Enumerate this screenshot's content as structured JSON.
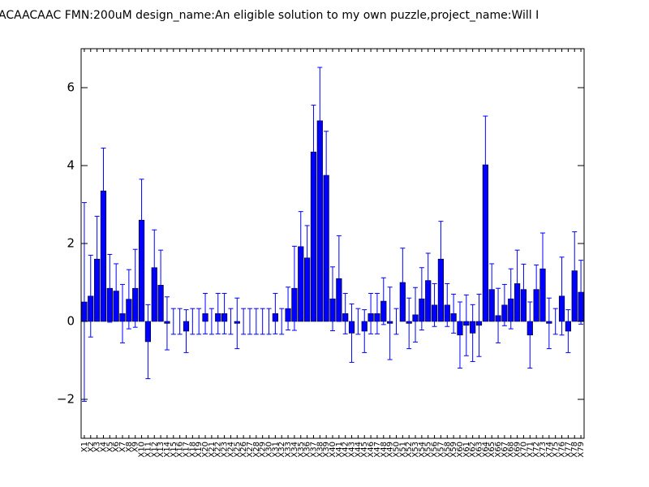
{
  "chart_data": {
    "type": "bar",
    "title": "ACAACAAC  FMN:200uM  design_name:An eligible solution to my own puzzle,project_name:Will I",
    "categories": [
      "X1",
      "X2",
      "X3",
      "X4",
      "X5",
      "X6",
      "X7",
      "X8",
      "X9",
      "X10",
      "X11",
      "X12",
      "X13",
      "X14",
      "X15",
      "X16",
      "X17",
      "X18",
      "X19",
      "X20",
      "X21",
      "X22",
      "X23",
      "X24",
      "X25",
      "X26",
      "X27",
      "X28",
      "X29",
      "X30",
      "X31",
      "X32",
      "X33",
      "X34",
      "X35",
      "X36",
      "X37",
      "X38",
      "X39",
      "X40",
      "X41",
      "X42",
      "X43",
      "X44",
      "X45",
      "X46",
      "X47",
      "X48",
      "X49",
      "X50",
      "X51",
      "X52",
      "X53",
      "X54",
      "X55",
      "X56",
      "X57",
      "X58",
      "X59",
      "X60",
      "X61",
      "X62",
      "X63",
      "X64",
      "X65",
      "X66",
      "X67",
      "X68",
      "X69",
      "X70",
      "X71",
      "X72",
      "X73",
      "X74",
      "X75",
      "X76",
      "X77",
      "X78",
      "X79"
    ],
    "values": [
      0.5,
      0.65,
      1.6,
      3.35,
      0.85,
      0.78,
      0.2,
      0.57,
      0.85,
      2.6,
      -0.52,
      1.38,
      0.93,
      -0.05,
      0,
      0,
      -0.25,
      0,
      0,
      0.2,
      0,
      0.2,
      0.2,
      0,
      -0.05,
      0,
      0,
      0,
      0,
      0,
      0.2,
      0,
      0.33,
      0.85,
      1.92,
      1.63,
      4.35,
      5.15,
      3.75,
      0.58,
      1.1,
      0.2,
      -0.3,
      0,
      -0.25,
      0.2,
      0.2,
      0.52,
      -0.05,
      0,
      1.0,
      -0.05,
      0.17,
      0.58,
      1.05,
      0.42,
      1.6,
      0.42,
      0.2,
      -0.35,
      -0.1,
      -0.3,
      -0.1,
      4.02,
      0.82,
      0.15,
      0.42,
      0.58,
      0.97,
      0.82,
      -0.35,
      0.82,
      1.35,
      -0.05,
      0,
      0.65,
      -0.25,
      1.3,
      0.75
    ],
    "errors": [
      2.55,
      1.05,
      1.1,
      1.1,
      0.87,
      0.7,
      0.75,
      0.76,
      1.0,
      1.05,
      0.95,
      0.97,
      0.9,
      0.68,
      0.33,
      0.33,
      0.55,
      0.33,
      0.33,
      0.52,
      0.33,
      0.52,
      0.52,
      0.33,
      0.65,
      0.33,
      0.33,
      0.33,
      0.33,
      0.33,
      0.52,
      0.33,
      0.55,
      1.08,
      0.9,
      0.83,
      1.2,
      1.37,
      1.13,
      0.82,
      1.1,
      0.52,
      0.75,
      0.33,
      0.55,
      0.52,
      0.52,
      0.6,
      0.93,
      0.33,
      0.88,
      0.65,
      0.7,
      0.8,
      0.7,
      0.55,
      0.97,
      0.55,
      0.5,
      0.85,
      0.78,
      0.73,
      0.8,
      1.25,
      0.66,
      0.7,
      0.53,
      0.77,
      0.86,
      0.65,
      0.85,
      0.63,
      0.92,
      0.65,
      0.33,
      1.0,
      0.55,
      1.0,
      0.82
    ],
    "color": "#0000ff",
    "error_color": "#0000ff",
    "ylim": [
      -3,
      7
    ],
    "yticks": [
      {
        "value": -2,
        "label": "−2"
      },
      0,
      2,
      4,
      6
    ]
  }
}
